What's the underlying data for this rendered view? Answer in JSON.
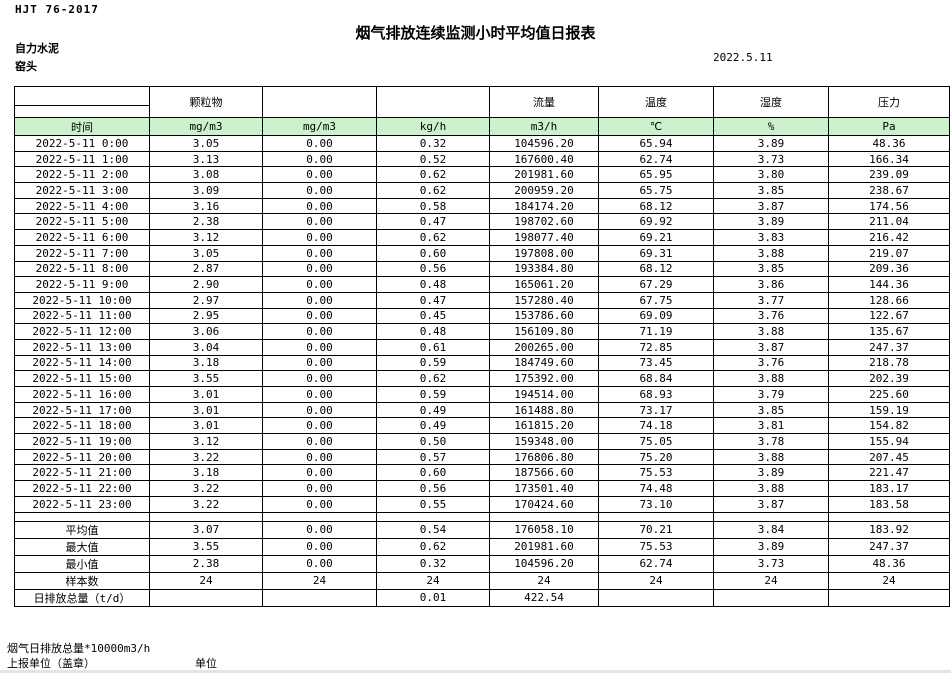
{
  "doc": {
    "standard": "HJT  76-2017",
    "title": "烟气排放连续监测小时平均值日报表",
    "company": "自力水泥",
    "station": "窑头",
    "date": "2022.5.11"
  },
  "colors": {
    "header_green": "#ccf2cc",
    "border": "#000000",
    "bottom_bar": "#e2e5e8"
  },
  "table": {
    "pollutant_headers": [
      "",
      "颗粒物",
      "",
      "",
      "流量",
      "温度",
      "湿度",
      "压力"
    ],
    "unit_row": [
      "时间",
      "mg/m3",
      "mg/m3",
      "kg/h",
      "m3/h",
      "℃",
      "%",
      "Pa"
    ],
    "rows": [
      {
        "time": "2022-5-11 0:00",
        "values": [
          "3.05",
          "0.00",
          "0.32",
          "104596.20",
          "65.94",
          "3.89",
          "48.36"
        ]
      },
      {
        "time": "2022-5-11 1:00",
        "values": [
          "3.13",
          "0.00",
          "0.52",
          "167600.40",
          "62.74",
          "3.73",
          "166.34"
        ]
      },
      {
        "time": "2022-5-11 2:00",
        "values": [
          "3.08",
          "0.00",
          "0.62",
          "201981.60",
          "65.95",
          "3.80",
          "239.09"
        ]
      },
      {
        "time": "2022-5-11 3:00",
        "values": [
          "3.09",
          "0.00",
          "0.62",
          "200959.20",
          "65.75",
          "3.85",
          "238.67"
        ]
      },
      {
        "time": "2022-5-11 4:00",
        "values": [
          "3.16",
          "0.00",
          "0.58",
          "184174.20",
          "68.12",
          "3.87",
          "174.56"
        ]
      },
      {
        "time": "2022-5-11 5:00",
        "values": [
          "2.38",
          "0.00",
          "0.47",
          "198702.60",
          "69.92",
          "3.89",
          "211.04"
        ]
      },
      {
        "time": "2022-5-11 6:00",
        "values": [
          "3.12",
          "0.00",
          "0.62",
          "198077.40",
          "69.21",
          "3.83",
          "216.42"
        ]
      },
      {
        "time": "2022-5-11 7:00",
        "values": [
          "3.05",
          "0.00",
          "0.60",
          "197808.00",
          "69.31",
          "3.88",
          "219.07"
        ]
      },
      {
        "time": "2022-5-11 8:00",
        "values": [
          "2.87",
          "0.00",
          "0.56",
          "193384.80",
          "68.12",
          "3.85",
          "209.36"
        ]
      },
      {
        "time": "2022-5-11 9:00",
        "values": [
          "2.90",
          "0.00",
          "0.48",
          "165061.20",
          "67.29",
          "3.86",
          "144.36"
        ]
      },
      {
        "time": "2022-5-11 10:00",
        "values": [
          "2.97",
          "0.00",
          "0.47",
          "157280.40",
          "67.75",
          "3.77",
          "128.66"
        ]
      },
      {
        "time": "2022-5-11 11:00",
        "values": [
          "2.95",
          "0.00",
          "0.45",
          "153786.60",
          "69.09",
          "3.76",
          "122.67"
        ]
      },
      {
        "time": "2022-5-11 12:00",
        "values": [
          "3.06",
          "0.00",
          "0.48",
          "156109.80",
          "71.19",
          "3.88",
          "135.67"
        ]
      },
      {
        "time": "2022-5-11 13:00",
        "values": [
          "3.04",
          "0.00",
          "0.61",
          "200265.00",
          "72.85",
          "3.87",
          "247.37"
        ]
      },
      {
        "time": "2022-5-11 14:00",
        "values": [
          "3.18",
          "0.00",
          "0.59",
          "184749.60",
          "73.45",
          "3.76",
          "218.78"
        ]
      },
      {
        "time": "2022-5-11 15:00",
        "values": [
          "3.55",
          "0.00",
          "0.62",
          "175392.00",
          "68.84",
          "3.88",
          "202.39"
        ]
      },
      {
        "time": "2022-5-11 16:00",
        "values": [
          "3.01",
          "0.00",
          "0.59",
          "194514.00",
          "68.93",
          "3.79",
          "225.60"
        ]
      },
      {
        "time": "2022-5-11 17:00",
        "values": [
          "3.01",
          "0.00",
          "0.49",
          "161488.80",
          "73.17",
          "3.85",
          "159.19"
        ]
      },
      {
        "time": "2022-5-11 18:00",
        "values": [
          "3.01",
          "0.00",
          "0.49",
          "161815.20",
          "74.18",
          "3.81",
          "154.82"
        ]
      },
      {
        "time": "2022-5-11 19:00",
        "values": [
          "3.12",
          "0.00",
          "0.50",
          "159348.00",
          "75.05",
          "3.78",
          "155.94"
        ]
      },
      {
        "time": "2022-5-11 20:00",
        "values": [
          "3.22",
          "0.00",
          "0.57",
          "176806.80",
          "75.20",
          "3.88",
          "207.45"
        ]
      },
      {
        "time": "2022-5-11 21:00",
        "values": [
          "3.18",
          "0.00",
          "0.60",
          "187566.60",
          "75.53",
          "3.89",
          "221.47"
        ]
      },
      {
        "time": "2022-5-11 22:00",
        "values": [
          "3.22",
          "0.00",
          "0.56",
          "173501.40",
          "74.48",
          "3.88",
          "183.17"
        ]
      },
      {
        "time": "2022-5-11 23:00",
        "values": [
          "3.22",
          "0.00",
          "0.55",
          "170424.60",
          "73.10",
          "3.87",
          "183.58"
        ]
      }
    ],
    "summary": [
      {
        "label": "平均值",
        "values": [
          "3.07",
          "0.00",
          "0.54",
          "176058.10",
          "70.21",
          "3.84",
          "183.92"
        ]
      },
      {
        "label": "最大值",
        "values": [
          "3.55",
          "0.00",
          "0.62",
          "201981.60",
          "75.53",
          "3.89",
          "247.37"
        ]
      },
      {
        "label": "最小值",
        "values": [
          "2.38",
          "0.00",
          "0.32",
          "104596.20",
          "62.74",
          "3.73",
          "48.36"
        ]
      },
      {
        "label": "样本数",
        "values": [
          "24",
          "24",
          "24",
          "24",
          "24",
          "24",
          "24"
        ]
      },
      {
        "label": "日排放总量（t/d）",
        "values": [
          "",
          "",
          "0.01",
          "422.54",
          "",
          "",
          ""
        ]
      }
    ]
  },
  "footer": {
    "note": "烟气日排放总量*10000m3/h",
    "report_unit": "上报单位（盖章）",
    "unit_label": "单位"
  }
}
